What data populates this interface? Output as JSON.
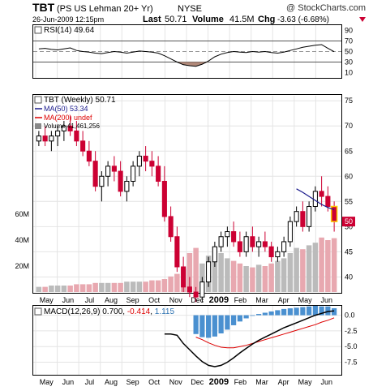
{
  "header": {
    "symbol": "TBT",
    "name": "(PS US Lehman 20+ Yr)",
    "exchange": "NYSE",
    "datetime": "26-Jun-2009 12:15pm",
    "last_label": "Last",
    "last_value": "50.71",
    "volume_label": "Volume",
    "volume_value": "41.5M",
    "chg_label": "Chg",
    "chg_value": "-3.63 (-6.68%)",
    "watermark": "@ StockCharts.com"
  },
  "rsi_panel": {
    "label": "RSI(14) 49.64",
    "yticks": [
      "90",
      "70",
      "50",
      "30",
      "10"
    ]
  },
  "price_panel": {
    "label_main": "TBT (Weekly) 50.71",
    "label_ma50": "MA(50) 53.34",
    "label_ma200": "MA(200) undef",
    "label_volume": "Volume 41,461,256",
    "yticks": [
      "75",
      "70",
      "65",
      "60",
      "55",
      "50",
      "45",
      "40"
    ],
    "volume_ticks": [
      "60M",
      "40M",
      "20M"
    ],
    "last_marker": "50"
  },
  "macd_panel": {
    "label_prefix": "MACD(12,26,9)",
    "macd_value": "0.700",
    "signal_value": "-0.414",
    "hist_value": "1.115",
    "yticks": [
      "0.0",
      "-2.5",
      "-5.0",
      "-7.5"
    ]
  },
  "x_axis": {
    "labels": [
      "May",
      "Jun",
      "Jul",
      "Aug",
      "Sep",
      "Oct",
      "Nov",
      "Dec",
      "2009",
      "Feb",
      "Mar",
      "Apr",
      "May",
      "Jun"
    ]
  },
  "colors": {
    "up_candle": "#000000",
    "down_candle": "#cc0033",
    "volume_up": "#bbbbbb",
    "volume_down": "#e8a8b0",
    "ma50": "#1a1a8c",
    "ma200": "#dd0000",
    "rsi_fill": "#b08878",
    "macd_hist": "#4a90d0",
    "macd_line": "#000000",
    "signal_line": "#dd0000"
  },
  "chart_data": {
    "type": "candlestick",
    "title": "TBT (Weekly)",
    "price_ylim": [
      37,
      76
    ],
    "weekly_ohlc": [
      [
        67,
        69,
        66,
        68
      ],
      [
        68,
        70,
        66,
        67
      ],
      [
        67,
        69,
        65,
        68
      ],
      [
        68,
        70,
        66,
        69
      ],
      [
        69,
        71,
        67,
        70
      ],
      [
        70,
        72,
        68,
        69
      ],
      [
        69,
        71,
        66,
        67
      ],
      [
        67,
        69,
        64,
        65
      ],
      [
        65,
        67,
        62,
        63
      ],
      [
        63,
        65,
        57,
        58
      ],
      [
        58,
        61,
        55,
        60
      ],
      [
        60,
        63,
        58,
        62
      ],
      [
        62,
        64,
        59,
        61
      ],
      [
        61,
        63,
        56,
        57
      ],
      [
        57,
        60,
        55,
        59
      ],
      [
        59,
        63,
        58,
        62
      ],
      [
        62,
        65,
        60,
        64
      ],
      [
        64,
        66,
        61,
        63
      ],
      [
        63,
        65,
        60,
        62
      ],
      [
        62,
        64,
        58,
        59
      ],
      [
        59,
        62,
        51,
        52
      ],
      [
        52,
        54,
        47,
        48
      ],
      [
        48,
        50,
        41,
        42
      ],
      [
        42,
        44,
        37,
        38
      ],
      [
        38,
        40,
        36,
        37
      ],
      [
        37,
        38,
        35,
        36
      ],
      [
        36,
        40,
        35,
        39
      ],
      [
        39,
        44,
        38,
        43
      ],
      [
        43,
        47,
        42,
        46
      ],
      [
        46,
        49,
        45,
        48
      ],
      [
        48,
        50,
        46,
        49
      ],
      [
        49,
        51,
        46,
        47
      ],
      [
        47,
        49,
        44,
        45
      ],
      [
        45,
        49,
        44,
        48
      ],
      [
        48,
        50,
        45,
        46
      ],
      [
        46,
        48,
        44,
        47
      ],
      [
        47,
        49,
        45,
        46
      ],
      [
        46,
        47,
        43,
        44
      ],
      [
        44,
        46,
        43,
        45
      ],
      [
        45,
        48,
        44,
        47
      ],
      [
        47,
        52,
        46,
        51
      ],
      [
        51,
        54,
        50,
        53
      ],
      [
        53,
        55,
        49,
        50
      ],
      [
        50,
        55,
        49,
        54
      ],
      [
        54,
        58,
        53,
        57
      ],
      [
        57,
        60,
        54,
        56
      ],
      [
        56,
        58,
        53,
        54
      ],
      [
        54,
        55,
        49,
        51
      ]
    ],
    "volume_millions": [
      4,
      4,
      5,
      5,
      5,
      5,
      6,
      6,
      6,
      7,
      7,
      7,
      7,
      7,
      8,
      8,
      8,
      8,
      9,
      9,
      10,
      12,
      14,
      18,
      30,
      34,
      22,
      28,
      35,
      30,
      26,
      24,
      22,
      20,
      19,
      21,
      20,
      22,
      24,
      26,
      30,
      34,
      33,
      36,
      38,
      42,
      40,
      41.5
    ],
    "ma50": [
      null,
      null,
      null,
      null,
      null,
      null,
      null,
      null,
      null,
      null,
      null,
      null,
      null,
      null,
      null,
      null,
      null,
      null,
      null,
      null,
      null,
      null,
      null,
      null,
      null,
      null,
      null,
      null,
      null,
      null,
      null,
      null,
      null,
      null,
      null,
      null,
      null,
      null,
      null,
      null,
      null,
      57.5,
      56.8,
      56.0,
      55.2,
      54.4,
      53.8,
      53.34
    ],
    "rsi": [
      55,
      56,
      54,
      53,
      55,
      57,
      52,
      50,
      49,
      47,
      46,
      48,
      50,
      49,
      47,
      49,
      51,
      50,
      49,
      47,
      42,
      36,
      30,
      25,
      23,
      22,
      26,
      32,
      40,
      45,
      48,
      50,
      49,
      48,
      50,
      49,
      50,
      48,
      47,
      49,
      52,
      55,
      58,
      60,
      62,
      63,
      56,
      49.64
    ],
    "macd": [
      null,
      null,
      null,
      null,
      null,
      null,
      null,
      null,
      null,
      null,
      null,
      null,
      null,
      null,
      null,
      null,
      null,
      null,
      null,
      null,
      -3.0,
      -3.0,
      -3.2,
      -4.5,
      -5.5,
      -6.5,
      -7.4,
      -8.0,
      -8.2,
      -8.0,
      -7.5,
      -6.8,
      -6.0,
      -5.3,
      -4.6,
      -4.0,
      -3.5,
      -3.0,
      -2.5,
      -2.0,
      -1.6,
      -1.2,
      -0.8,
      -0.4,
      0.0,
      0.3,
      0.6,
      0.7
    ],
    "macd_signal": [
      null,
      null,
      null,
      null,
      null,
      null,
      null,
      null,
      null,
      null,
      null,
      null,
      null,
      null,
      null,
      null,
      null,
      null,
      null,
      null,
      null,
      null,
      null,
      null,
      null,
      -3.5,
      -3.9,
      -4.4,
      -4.8,
      -5.1,
      -5.2,
      -5.2,
      -5.0,
      -4.8,
      -4.5,
      -4.2,
      -3.9,
      -3.6,
      -3.3,
      -3.0,
      -2.7,
      -2.4,
      -2.1,
      -1.8,
      -1.5,
      -1.1,
      -0.8,
      -0.414
    ],
    "macd_hist": [
      null,
      null,
      null,
      null,
      null,
      null,
      null,
      null,
      null,
      null,
      null,
      null,
      null,
      null,
      null,
      null,
      null,
      null,
      null,
      null,
      null,
      null,
      null,
      null,
      null,
      -3.0,
      -3.5,
      -3.6,
      -3.4,
      -2.9,
      -2.3,
      -1.6,
      -1.0,
      -0.5,
      -0.1,
      0.2,
      0.4,
      0.6,
      0.8,
      1.0,
      1.1,
      1.2,
      1.3,
      1.4,
      1.5,
      1.4,
      1.4,
      1.115
    ],
    "rsi_ylim": [
      0,
      100
    ],
    "macd_ylim": [
      -9.5,
      1.5
    ]
  }
}
